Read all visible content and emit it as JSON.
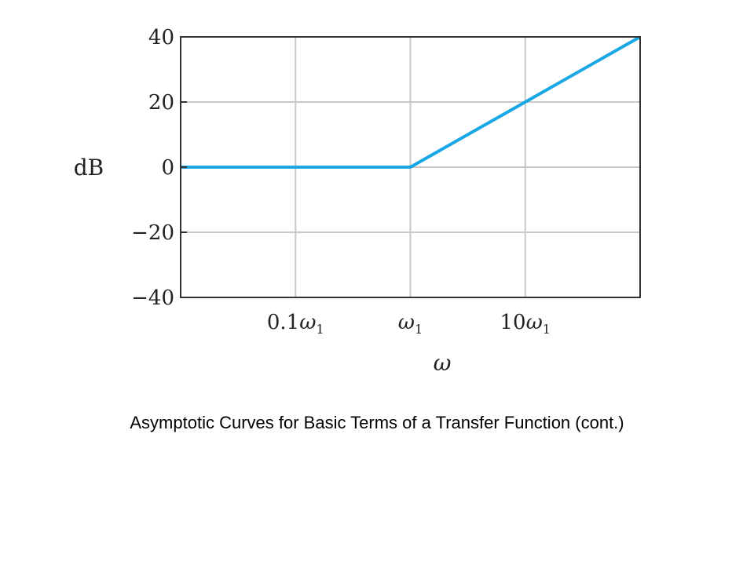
{
  "caption": "Asymptotic Curves for Basic Terms of a Transfer Function (cont.)",
  "chart_data": {
    "type": "line",
    "title": "",
    "xlabel": "ω",
    "ylabel": "dB",
    "x_scale": "log",
    "xlim": [
      0.01,
      100
    ],
    "ylim": [
      -40,
      40
    ],
    "grid": true,
    "x_ticks": [
      {
        "value": 0.1,
        "label": "0.1",
        "sub_symbol": "ω",
        "subscript": "1"
      },
      {
        "value": 1,
        "label": "",
        "sub_symbol": "ω",
        "subscript": "1"
      },
      {
        "value": 10,
        "label": "10",
        "sub_symbol": "ω",
        "subscript": "1"
      }
    ],
    "y_ticks": [
      {
        "value": 40,
        "label": "40"
      },
      {
        "value": 20,
        "label": "20"
      },
      {
        "value": 0,
        "label": "0"
      },
      {
        "value": -20,
        "label": "−20"
      },
      {
        "value": -40,
        "label": "−40"
      }
    ],
    "series": [
      {
        "color": "#1aa7e6",
        "x": [
          0.01,
          1,
          100
        ],
        "y": [
          0,
          0,
          40
        ]
      }
    ],
    "colors": {
      "grid": "#c8c8c8",
      "axes": "#333333",
      "line": "#1aa7e6"
    }
  }
}
